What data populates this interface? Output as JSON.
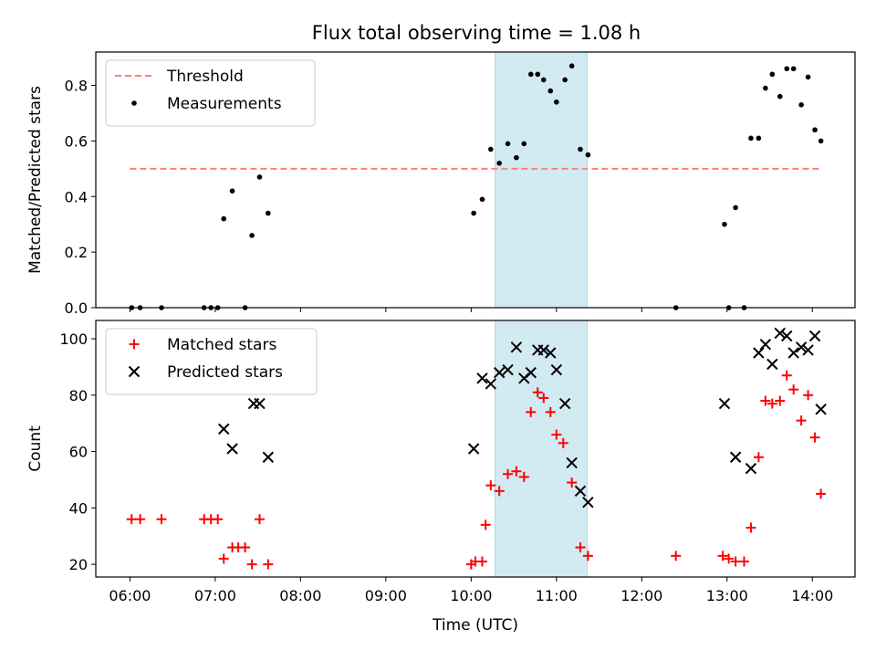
{
  "title": "Flux total observing time = 1.08 h",
  "shaded_region": {
    "start_hour": 10.28,
    "end_hour": 11.36,
    "color": "#add8e6"
  },
  "chart_data": [
    {
      "type": "scatter",
      "ylabel": "Matched/Predicted stars",
      "xlim": [
        5.6,
        14.5
      ],
      "ylim": [
        0,
        0.92
      ],
      "yticks": [
        "0.0",
        "0.2",
        "0.4",
        "0.6",
        "0.8"
      ],
      "legend_position": "top-left",
      "threshold": {
        "name": "Threshold",
        "value": 0.5,
        "x_range": [
          6.0,
          14.1
        ],
        "color": "#ff7f7f"
      },
      "series": [
        {
          "name": "Measurements",
          "color": "#000000",
          "x": [
            6.02,
            6.12,
            6.37,
            6.87,
            6.95,
            7.03,
            7.1,
            7.2,
            7.35,
            7.43,
            7.52,
            7.62,
            10.03,
            10.13,
            10.23,
            10.33,
            10.43,
            10.53,
            10.62,
            10.7,
            10.78,
            10.85,
            10.93,
            11.0,
            11.1,
            11.18,
            11.28,
            11.37,
            12.4,
            12.97,
            13.02,
            13.1,
            13.2,
            13.28,
            13.37,
            13.45,
            13.53,
            13.62,
            13.7,
            13.78,
            13.87,
            13.95,
            14.03,
            14.1
          ],
          "y": [
            0,
            0,
            0,
            0,
            0,
            0,
            0.32,
            0.42,
            0,
            0.26,
            0.47,
            0.34,
            0.34,
            0.39,
            0.57,
            0.52,
            0.59,
            0.54,
            0.59,
            0.84,
            0.84,
            0.82,
            0.78,
            0.74,
            0.82,
            0.87,
            0.57,
            0.55,
            0,
            0.3,
            0,
            0.36,
            0,
            0.61,
            0.61,
            0.79,
            0.84,
            0.76,
            0.86,
            0.86,
            0.73,
            0.83,
            0.64,
            0.6
          ]
        }
      ]
    },
    {
      "type": "scatter",
      "xlabel": "Time (UTC)",
      "ylabel": "Count",
      "xlim": [
        5.6,
        14.5
      ],
      "ylim": [
        15.5,
        106.5
      ],
      "yticks": [
        "20",
        "40",
        "60",
        "80",
        "100"
      ],
      "xticks": [
        "06:00",
        "07:00",
        "08:00",
        "09:00",
        "10:00",
        "11:00",
        "12:00",
        "13:00",
        "14:00"
      ],
      "legend_position": "top-left",
      "series": [
        {
          "name": "Matched stars",
          "color": "#ff0000",
          "x": [
            6.02,
            6.12,
            6.37,
            6.87,
            6.95,
            7.03,
            7.1,
            7.2,
            7.27,
            7.35,
            7.43,
            7.52,
            7.62,
            10.0,
            10.05,
            10.13,
            10.17,
            10.23,
            10.33,
            10.43,
            10.53,
            10.62,
            10.7,
            10.78,
            10.85,
            10.93,
            11.0,
            11.08,
            11.18,
            11.28,
            11.37,
            12.4,
            12.95,
            13.02,
            13.1,
            13.2,
            13.28,
            13.37,
            13.45,
            13.53,
            13.62,
            13.7,
            13.78,
            13.87,
            13.95,
            14.03,
            14.1
          ],
          "y": [
            36,
            36,
            36,
            36,
            36,
            36,
            22,
            26,
            26,
            26,
            20,
            36,
            20,
            20,
            21,
            21,
            34,
            48,
            46,
            52,
            53,
            51,
            74,
            81,
            79,
            74,
            66,
            63,
            49,
            26,
            23,
            23,
            23,
            22,
            21,
            21,
            33,
            58,
            78,
            77,
            78,
            87,
            82,
            71,
            80,
            65,
            45
          ]
        },
        {
          "name": "Predicted stars",
          "color": "#000000",
          "x": [
            7.1,
            7.2,
            7.45,
            7.52,
            7.62,
            10.03,
            10.13,
            10.23,
            10.33,
            10.43,
            10.53,
            10.62,
            10.7,
            10.78,
            10.85,
            10.93,
            11.0,
            11.1,
            11.18,
            11.28,
            11.37,
            12.97,
            13.1,
            13.28,
            13.37,
            13.45,
            13.53,
            13.62,
            13.7,
            13.78,
            13.87,
            13.95,
            14.03,
            14.1
          ],
          "y": [
            68,
            61,
            77,
            77,
            58,
            61,
            86,
            84,
            88,
            89,
            97,
            86,
            88,
            96,
            96,
            95,
            89,
            77,
            56,
            46,
            42,
            77,
            58,
            54,
            95,
            98,
            91,
            102,
            101,
            95,
            97,
            96,
            101,
            75
          ]
        }
      ]
    }
  ]
}
